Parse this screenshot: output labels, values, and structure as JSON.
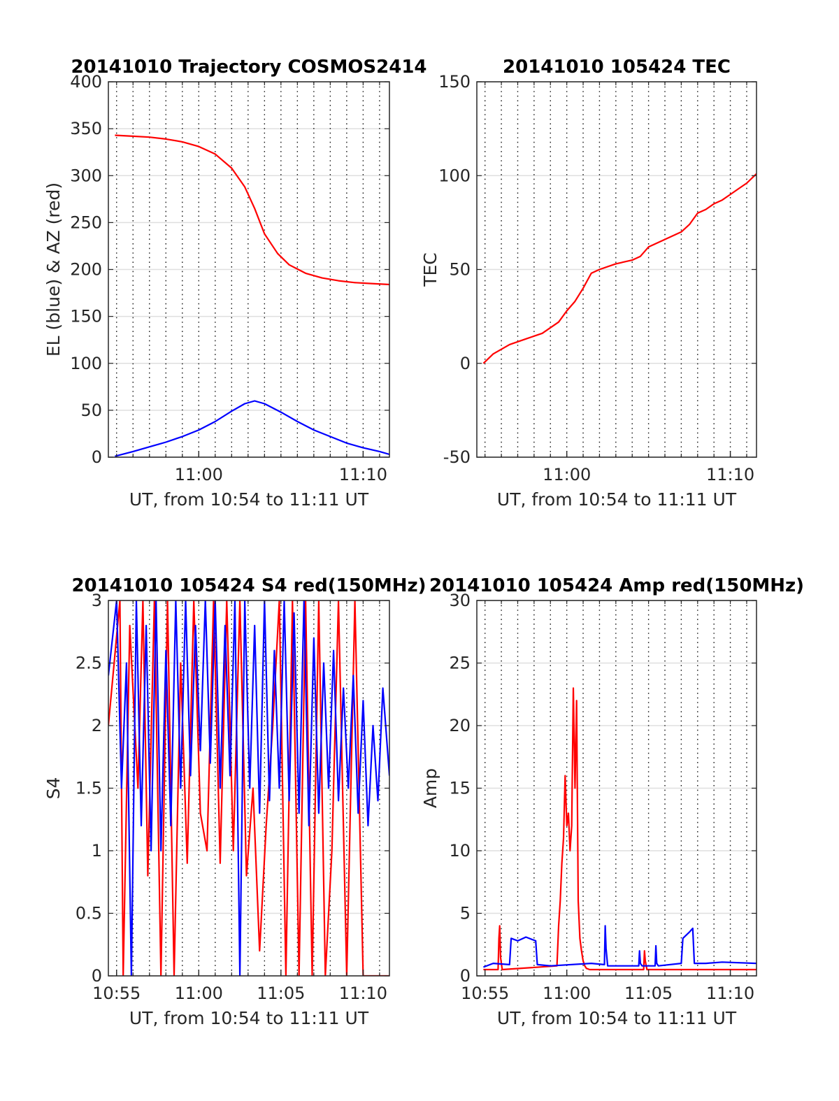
{
  "chart_data": [
    {
      "type": "line",
      "title": "20141010 Trajectory COSMOS2414",
      "xlabel": "UT, from 10:54 to 11:11 UT",
      "ylabel": "EL (blue) & AZ (red)",
      "xlim": [
        10.5,
        27.6
      ],
      "ylim": [
        0,
        400
      ],
      "x_ticks": [
        {
          "value": 16,
          "label": "11:00"
        },
        {
          "value": 26,
          "label": "11:10"
        }
      ],
      "y_ticks": [
        {
          "value": 0,
          "label": "0"
        },
        {
          "value": 50,
          "label": "50"
        },
        {
          "value": 100,
          "label": "100"
        },
        {
          "value": 150,
          "label": "150"
        },
        {
          "value": 200,
          "label": "200"
        },
        {
          "value": 250,
          "label": "250"
        },
        {
          "value": 300,
          "label": "300"
        },
        {
          "value": 350,
          "label": "350"
        },
        {
          "value": 400,
          "label": "400"
        }
      ],
      "grid": true,
      "series": [
        {
          "color": "#ff0000",
          "x": [
            10.9,
            12,
            13,
            14,
            15,
            16,
            17,
            18,
            18.8,
            19.4,
            20,
            20.8,
            21.5,
            22.5,
            23.5,
            24.5,
            25.5,
            26.5,
            27.6
          ],
          "y": [
            343,
            342,
            341,
            339,
            336,
            331,
            323,
            308,
            288,
            265,
            238,
            217,
            205,
            196,
            191,
            188,
            186,
            185,
            184
          ]
        },
        {
          "color": "#0000ff",
          "x": [
            10.9,
            12,
            13,
            14,
            15,
            16,
            17,
            18,
            18.8,
            19.4,
            20,
            21,
            22,
            23,
            24,
            25,
            26,
            27,
            27.6
          ],
          "y": [
            1,
            6,
            11,
            16,
            22,
            29,
            38,
            49,
            57,
            60,
            57,
            48,
            38,
            29,
            22,
            15,
            10,
            6,
            3
          ]
        }
      ]
    },
    {
      "type": "line",
      "title": "20141010 105424 TEC",
      "xlabel": "UT, from 10:54 to 11:11 UT",
      "ylabel": "TEC",
      "xlim": [
        10.5,
        27.6
      ],
      "ylim": [
        -50,
        150
      ],
      "x_ticks": [
        {
          "value": 16,
          "label": "11:00"
        },
        {
          "value": 26,
          "label": "11:10"
        }
      ],
      "y_ticks": [
        {
          "value": -50,
          "label": "-50"
        },
        {
          "value": 0,
          "label": "0"
        },
        {
          "value": 50,
          "label": "50"
        },
        {
          "value": 100,
          "label": "100"
        },
        {
          "value": 150,
          "label": "150"
        }
      ],
      "grid": true,
      "series": [
        {
          "color": "#ff0000",
          "x": [
            10.9,
            11.5,
            12.5,
            13.5,
            14.5,
            15.5,
            16,
            16.5,
            17,
            17.5,
            18,
            19,
            20,
            20.5,
            21,
            22,
            23,
            23.5,
            24,
            24.5,
            25,
            25.5,
            26,
            26.5,
            27,
            27.6
          ],
          "y": [
            0,
            5,
            10,
            13,
            16,
            22,
            28,
            33,
            40,
            48,
            50,
            53,
            55,
            57,
            62,
            66,
            70,
            74,
            80,
            82,
            85,
            87,
            90,
            93,
            96,
            101
          ]
        }
      ]
    },
    {
      "type": "line",
      "title": "20141010 105424 S4 red(150MHz)",
      "xlabel": "UT, from 10:54 to 11:11 UT",
      "ylabel": "S4",
      "xlim": [
        10.5,
        27.6
      ],
      "ylim": [
        0,
        3
      ],
      "x_ticks": [
        {
          "value": 11,
          "label": "10:55"
        },
        {
          "value": 16,
          "label": "11:00"
        },
        {
          "value": 21,
          "label": "11:05"
        },
        {
          "value": 26,
          "label": "11:10"
        }
      ],
      "y_ticks": [
        {
          "value": 0,
          "label": "0"
        },
        {
          "value": 0.5,
          "label": "0.5"
        },
        {
          "value": 1,
          "label": "1"
        },
        {
          "value": 1.5,
          "label": "1.5"
        },
        {
          "value": 2,
          "label": "2"
        },
        {
          "value": 2.5,
          "label": "2.5"
        },
        {
          "value": 3,
          "label": "3"
        }
      ],
      "grid": true,
      "series": [
        {
          "color": "#ff0000",
          "x": [
            10.5,
            11.2,
            11.4,
            11.8,
            12.3,
            12.6,
            12.9,
            13.3,
            13.7,
            14.1,
            14.5,
            14.9,
            15.3,
            15.7,
            16.1,
            16.5,
            16.9,
            17.3,
            17.7,
            18.1,
            18.5,
            18.9,
            19.3,
            19.7,
            20.1,
            20.5,
            20.9,
            21.3,
            21.7,
            22.1,
            22.5,
            22.9,
            23.3,
            23.7,
            24.1,
            24.5,
            25,
            25.5,
            26,
            26.5,
            27,
            27.6
          ],
          "y": [
            2,
            3,
            0,
            2.8,
            1.5,
            3,
            0.8,
            3,
            0,
            3,
            0,
            2.5,
            0.9,
            3,
            1.3,
            1,
            3,
            0.9,
            3,
            1,
            3,
            0.8,
            1.5,
            0.2,
            1.2,
            2,
            3,
            0,
            3,
            0,
            3,
            0,
            3,
            0,
            1,
            3,
            0,
            3,
            0,
            0,
            0,
            0
          ]
        },
        {
          "color": "#0000ff",
          "x": [
            10.5,
            11,
            11.3,
            11.6,
            11.9,
            12.2,
            12.5,
            12.8,
            13.1,
            13.4,
            13.7,
            14,
            14.3,
            14.6,
            14.9,
            15.2,
            15.5,
            15.8,
            16.1,
            16.4,
            16.7,
            17,
            17.3,
            17.6,
            17.9,
            18.2,
            18.5,
            18.8,
            19.1,
            19.4,
            19.7,
            20,
            20.3,
            20.6,
            20.9,
            21.2,
            21.5,
            21.8,
            22.1,
            22.4,
            22.7,
            23,
            23.3,
            23.6,
            23.9,
            24.2,
            24.5,
            24.8,
            25.1,
            25.4,
            25.7,
            26,
            26.3,
            26.6,
            26.9,
            27.2,
            27.6
          ],
          "y": [
            2.4,
            3,
            1.5,
            2.5,
            0,
            3,
            1.2,
            2.8,
            1,
            3,
            1,
            2.6,
            1.2,
            3,
            1.5,
            3,
            1.6,
            2.8,
            1.8,
            3,
            1.7,
            3,
            1.5,
            2.8,
            1.6,
            3,
            0,
            3,
            1.5,
            2.8,
            1.3,
            3,
            1.4,
            2.6,
            1.5,
            3,
            1.4,
            2.9,
            1.3,
            3,
            1.2,
            2.7,
            1.3,
            2.5,
            1.5,
            2.6,
            1.4,
            2.3,
            1.5,
            2.4,
            1.3,
            2.2,
            1.2,
            2,
            1.4,
            2.3,
            1.6
          ]
        }
      ]
    },
    {
      "type": "line",
      "title": "20141010 105424 Amp red(150MHz)",
      "xlabel": "UT, from 10:54 to 11:11 UT",
      "ylabel": "Amp",
      "xlim": [
        10.5,
        27.6
      ],
      "ylim": [
        0,
        30
      ],
      "x_ticks": [
        {
          "value": 11,
          "label": "10:55"
        },
        {
          "value": 16,
          "label": "11:00"
        },
        {
          "value": 21,
          "label": "11:05"
        },
        {
          "value": 26,
          "label": "11:10"
        }
      ],
      "y_ticks": [
        {
          "value": 0,
          "label": "0"
        },
        {
          "value": 5,
          "label": "5"
        },
        {
          "value": 10,
          "label": "10"
        },
        {
          "value": 15,
          "label": "15"
        },
        {
          "value": 20,
          "label": "20"
        },
        {
          "value": 25,
          "label": "25"
        },
        {
          "value": 30,
          "label": "30"
        }
      ],
      "grid": true,
      "series": [
        {
          "color": "#ff0000",
          "x": [
            10.9,
            11.8,
            11.85,
            11.9,
            11.95,
            12.05,
            15.4,
            15.5,
            15.6,
            15.7,
            15.8,
            15.9,
            16,
            16.1,
            16.2,
            16.3,
            16.4,
            16.5,
            16.6,
            16.7,
            16.8,
            16.9,
            17,
            17.1,
            17.2,
            17.4,
            20.7,
            20.75,
            20.8,
            20.9,
            27.6
          ],
          "y": [
            0.5,
            0.5,
            3,
            4,
            1.5,
            0.5,
            0.8,
            4,
            6,
            9,
            11,
            16,
            12,
            13,
            10,
            12,
            23,
            15,
            22,
            6,
            3,
            2,
            1.2,
            0.8,
            0.6,
            0.5,
            0.5,
            2,
            1.2,
            0.5,
            0.5
          ]
        },
        {
          "color": "#0000ff",
          "x": [
            10.9,
            11.5,
            12.5,
            12.6,
            13,
            13.5,
            14.1,
            14.2,
            15,
            17.5,
            18.3,
            18.35,
            18.4,
            18.5,
            20.4,
            20.45,
            20.5,
            20.6,
            21.4,
            21.45,
            21.5,
            21.6,
            23,
            23.1,
            23.5,
            23.7,
            23.8,
            24.5,
            25.5,
            27.6
          ],
          "y": [
            0.7,
            1,
            0.9,
            3,
            2.8,
            3.1,
            2.8,
            0.9,
            0.8,
            1,
            0.9,
            4,
            2.2,
            0.8,
            0.8,
            2,
            1,
            0.8,
            0.8,
            2.4,
            1,
            0.8,
            1,
            3,
            3.5,
            3.8,
            1,
            1,
            1.1,
            1
          ]
        }
      ]
    }
  ]
}
